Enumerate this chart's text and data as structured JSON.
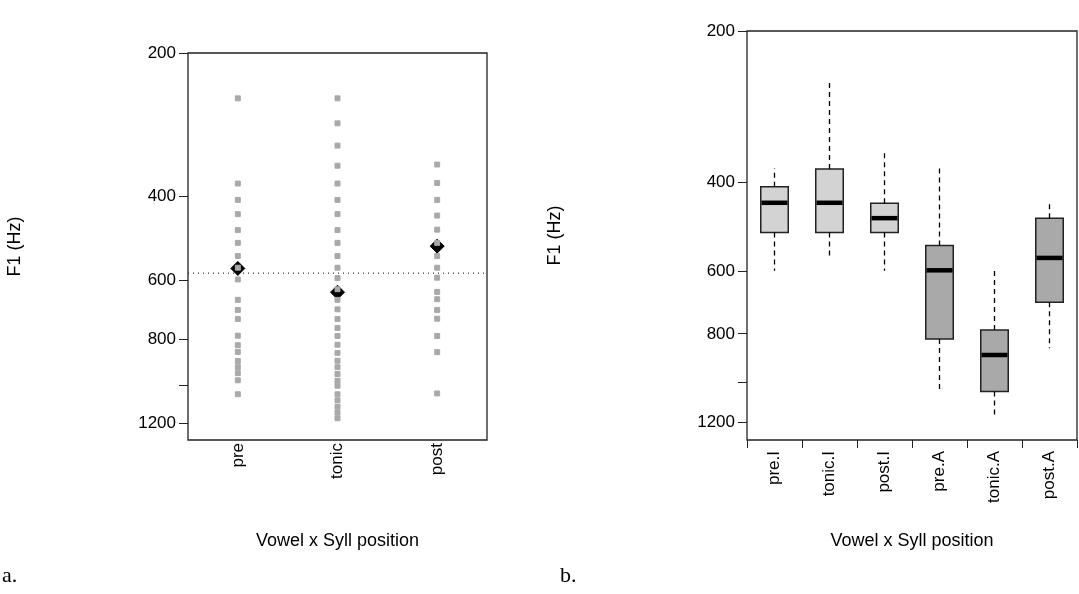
{
  "chart_data": [
    {
      "type": "scatter",
      "categories": [
        "pre",
        "tonic",
        "post"
      ],
      "xlabel": "Vowel x Syll position",
      "ylabel": "F1 (Hz)",
      "log": "y",
      "ylim": [
        1300,
        200
      ],
      "yticks": [
        200,
        400,
        600,
        800,
        {
          "value": 1000,
          "label": null
        },
        1200
      ],
      "grid": false,
      "legend": false,
      "series": [
        {
          "type": "scatter",
          "marker": "square",
          "color": "#a9a9a9",
          "x": [
            "pre",
            "pre",
            "pre",
            "pre",
            "pre",
            "pre",
            "pre",
            "pre",
            "pre",
            "pre",
            "pre",
            "pre",
            "pre",
            "pre",
            "pre",
            "pre",
            "pre",
            "pre",
            "pre",
            "pre",
            "tonic",
            "tonic",
            "tonic",
            "tonic",
            "tonic",
            "tonic",
            "tonic",
            "tonic",
            "tonic",
            "tonic",
            "tonic",
            "tonic",
            "tonic",
            "tonic",
            "tonic",
            "tonic",
            "tonic",
            "tonic",
            "tonic",
            "tonic",
            "tonic",
            "tonic",
            "tonic",
            "tonic",
            "tonic",
            "tonic",
            "tonic",
            "tonic",
            "tonic",
            "tonic",
            "post",
            "post",
            "post",
            "post",
            "post",
            "post",
            "post",
            "post",
            "post",
            "post",
            "post",
            "post",
            "post",
            "post",
            "post",
            "post"
          ],
          "values": [
            249,
            376,
            407,
            436,
            471,
            501,
            534,
            565,
            598,
            660,
            693,
            724,
            785,
            822,
            849,
            887,
            914,
            941,
            974,
            1042,
            249,
            281,
            313,
            345,
            376,
            407,
            436,
            471,
            501,
            534,
            565,
            594,
            627,
            660,
            691,
            724,
            756,
            786,
            820,
            853,
            886,
            914,
            945,
            976,
            1000,
            1042,
            1073,
            1107,
            1138,
            1170,
            343,
            375,
            407,
            439,
            470,
            501,
            534,
            565,
            593,
            635,
            658,
            693,
            723,
            786,
            850,
            1038
          ]
        },
        {
          "type": "scatter",
          "marker": "diamond",
          "color": "#000000",
          "x": [
            "pre",
            "tonic",
            "post"
          ],
          "values": [
            567,
            636,
            509
          ]
        }
      ],
      "ref_lines": [
        {
          "axis": "y",
          "value": 580,
          "line_style": "dotted",
          "color": "#000000"
        }
      ],
      "annotations": [
        "a."
      ]
    },
    {
      "type": "box",
      "categories": [
        "pre.I",
        "tonic.I",
        "post.I",
        "pre.A",
        "tonic.A",
        "post.A"
      ],
      "xlabel": "Vowel x Syll position",
      "ylabel": "F1 (Hz)",
      "log": "y",
      "ylim": [
        1300,
        200
      ],
      "yticks": [
        200,
        400,
        600,
        800,
        {
          "value": 1000,
          "label": null
        },
        1200
      ],
      "grid": false,
      "legend": false,
      "colors": [
        "#d3d3d3",
        "#d3d3d3",
        "#d3d3d3",
        "#a9a9a9",
        "#a9a9a9",
        "#a9a9a9"
      ],
      "boxes": [
        {
          "low": 375,
          "q1": 408,
          "median": 439,
          "q3": 503,
          "high": 599
        },
        {
          "low": 249,
          "q1": 376,
          "median": 439,
          "q3": 503,
          "high": 567
        },
        {
          "low": 344,
          "q1": 440,
          "median": 471,
          "q3": 503,
          "high": 599
        },
        {
          "low": 375,
          "q1": 534,
          "median": 598,
          "q3": 819,
          "high": 1046
        },
        {
          "low": 597,
          "q1": 786,
          "median": 881,
          "q3": 1041,
          "high": 1170
        },
        {
          "low": 440,
          "q1": 471,
          "median": 565,
          "q3": 692,
          "high": 854
        }
      ],
      "annotations": [
        "b."
      ]
    }
  ]
}
